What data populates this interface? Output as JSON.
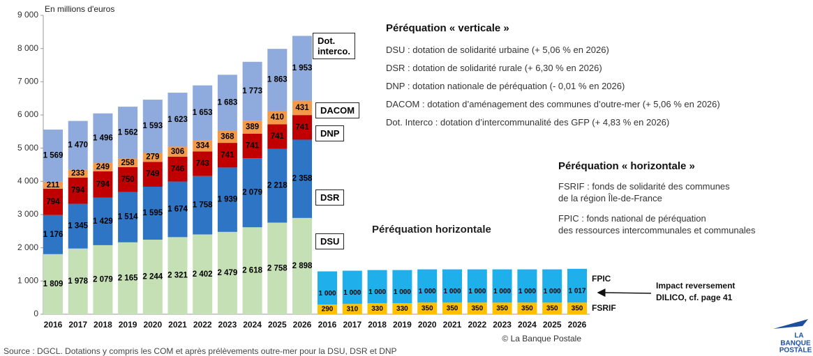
{
  "chart_data": {
    "type": "bar",
    "stacked": true,
    "grid": false,
    "y_label": "En millions d'euros",
    "categories": [
      "2016",
      "2017",
      "2018",
      "2019",
      "2020",
      "2021",
      "2022",
      "2023",
      "2024",
      "2025",
      "2026",
      "2016",
      "2017",
      "2018",
      "2019",
      "2020",
      "2021",
      "2022",
      "2023",
      "2024",
      "2025",
      "2026"
    ],
    "ylim": [
      0,
      9000
    ],
    "yticks": [
      {
        "value": 0,
        "label": "0"
      },
      {
        "value": 1000,
        "label": "1 000"
      },
      {
        "value": 2000,
        "label": "2 000"
      },
      {
        "value": 3000,
        "label": "3 000"
      },
      {
        "value": 4000,
        "label": "4 000"
      },
      {
        "value": 5000,
        "label": "5 000"
      },
      {
        "value": 6000,
        "label": "6 000"
      },
      {
        "value": 7000,
        "label": "7 000"
      },
      {
        "value": 8000,
        "label": "8 000"
      },
      {
        "value": 9000,
        "label": "9 000"
      }
    ],
    "series": [
      {
        "name": "DSU",
        "color": "#c5e0b4",
        "values": [
          1809,
          1978,
          2079,
          2165,
          2244,
          2321,
          2402,
          2479,
          2618,
          2758,
          2898,
          null,
          null,
          null,
          null,
          null,
          null,
          null,
          null,
          null,
          null,
          null
        ],
        "value_labels": [
          "1 809",
          "1 978",
          "2 079",
          "2 165",
          "2 244",
          "2 321",
          "2 402",
          "2 479",
          "2 618",
          "2 758",
          "2 898",
          null,
          null,
          null,
          null,
          null,
          null,
          null,
          null,
          null,
          null,
          null
        ]
      },
      {
        "name": "DSR",
        "color": "#2e75c6",
        "values": [
          1176,
          1345,
          1429,
          1514,
          1595,
          1674,
          1758,
          1939,
          2079,
          2218,
          2358,
          null,
          null,
          null,
          null,
          null,
          null,
          null,
          null,
          null,
          null,
          null
        ],
        "value_labels": [
          "1 176",
          "1 345",
          "1 429",
          "1 514",
          "1 595",
          "1 674",
          "1 758",
          "1 939",
          "2 079",
          "2 218",
          "2 358",
          null,
          null,
          null,
          null,
          null,
          null,
          null,
          null,
          null,
          null,
          null
        ]
      },
      {
        "name": "DNP",
        "color": "#c00000",
        "values": [
          794,
          794,
          794,
          750,
          749,
          746,
          743,
          741,
          741,
          741,
          741,
          null,
          null,
          null,
          null,
          null,
          null,
          null,
          null,
          null,
          null,
          null
        ]
      },
      {
        "name": "DACOM",
        "color": "#f39a4a",
        "values": [
          211,
          233,
          249,
          258,
          279,
          306,
          334,
          368,
          389,
          410,
          431,
          null,
          null,
          null,
          null,
          null,
          null,
          null,
          null,
          null,
          null,
          null
        ]
      },
      {
        "name": "Dot. interco.",
        "color": "#8faadc",
        "values": [
          1569,
          1470,
          1496,
          1562,
          1593,
          1623,
          1653,
          1683,
          1773,
          1863,
          1953,
          null,
          null,
          null,
          null,
          null,
          null,
          null,
          null,
          null,
          null,
          null
        ],
        "value_labels": [
          "1 569",
          "1 470",
          "1 496",
          "1 562",
          "1 593",
          "1 623",
          "1 653",
          "1 683",
          "1 773",
          "1 863",
          "1 953",
          null,
          null,
          null,
          null,
          null,
          null,
          null,
          null,
          null,
          null,
          null
        ]
      },
      {
        "name": "FSRIF",
        "color": "#ffc000",
        "values": [
          null,
          null,
          null,
          null,
          null,
          null,
          null,
          null,
          null,
          null,
          null,
          290,
          310,
          330,
          330,
          350,
          350,
          350,
          350,
          350,
          350,
          350
        ]
      },
      {
        "name": "FPIC",
        "color": "#1fb0ec",
        "values": [
          null,
          null,
          null,
          null,
          null,
          null,
          null,
          null,
          null,
          null,
          null,
          1000,
          1000,
          1000,
          1000,
          1000,
          1000,
          1000,
          1000,
          1000,
          1000,
          1017
        ],
        "value_labels": [
          null,
          null,
          null,
          null,
          null,
          null,
          null,
          null,
          null,
          null,
          null,
          "1 000",
          "1 000",
          "1 000",
          "1 000",
          "1 000",
          "1 000",
          "1 000",
          "1 000",
          "1 000",
          "1 000",
          "1 017"
        ]
      }
    ],
    "group_label": "Péréquation horizontale",
    "annotation": [
      "Impact reversement",
      "DILICO, cf. page 41"
    ],
    "credit": "© La Banque Postale"
  },
  "panels": [
    {
      "title": "Péréquation « verticale »",
      "items": [
        [
          "DSU : dotation de solidarité urbaine (+ 5,06 % en 2026)"
        ],
        [
          "DSR : dotation de solidarité rurale (+ 6,30 % en 2026)"
        ],
        [
          "DNP : dotation nationale de péréquation (- 0,01 % en 2026)"
        ],
        [
          "DACOM : dotation d’aménagement des communes d’outre-mer (+ 5,06 % en 2026)"
        ],
        [
          "Dot. Interco : dotation d’intercommunalité des GFP (+ 4,83 % en 2026)"
        ]
      ]
    },
    {
      "title": "Péréquation « horizontale »",
      "items": [
        [
          "FSRIF : fonds de solidarité des communes",
          "de la région Île-de-France"
        ],
        [
          "FPIC : fonds national de péréquation",
          "des ressources intercommunales et communales"
        ]
      ]
    }
  ],
  "source": "Source : DGCL. Dotations y compris les COM et après prélèvements outre-mer pour la DSU, DSR et DNP",
  "logo": [
    "LA",
    "BANQUE",
    "POSTALE"
  ]
}
